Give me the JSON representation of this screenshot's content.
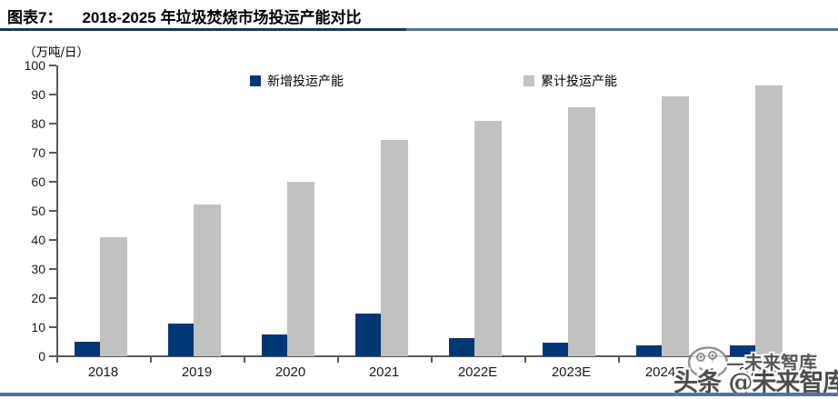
{
  "header": {
    "label": "图表7：",
    "title": "2018-2025 年垃圾焚烧市场投运产能对比"
  },
  "chart_data": {
    "type": "bar",
    "title": "2018-2025 年垃圾焚烧市场投运产能对比",
    "unit_label": "（万吨/日）",
    "categories": [
      "2018",
      "2019",
      "2020",
      "2021",
      "2022E",
      "2023E",
      "2024E",
      "2025E"
    ],
    "series": [
      {
        "name": "新增投运产能",
        "color": "#003876",
        "values": [
          5.0,
          11.2,
          7.5,
          14.7,
          6.3,
          4.6,
          3.9,
          3.7
        ]
      },
      {
        "name": "累计投运产能",
        "color": "#C1C1C1",
        "values": [
          41.0,
          52.3,
          60.0,
          74.5,
          81.0,
          85.5,
          89.3,
          93.0
        ]
      }
    ],
    "ylim": [
      0,
      100
    ],
    "yticks": [
      0,
      10,
      20,
      30,
      40,
      50,
      60,
      70,
      80,
      90,
      100
    ],
    "legend_position": "top",
    "grid": false
  },
  "watermark": {
    "small_text": "—未来智库",
    "main_text": "头条 @未来智库",
    "icon": "smiley-face-icon"
  },
  "colors": {
    "title_rule_navy": "#17375E",
    "page_rule_steel": "#54749E",
    "axis": "#595959",
    "bar_new": "#003876",
    "bar_cumulative": "#C1C1C1"
  }
}
